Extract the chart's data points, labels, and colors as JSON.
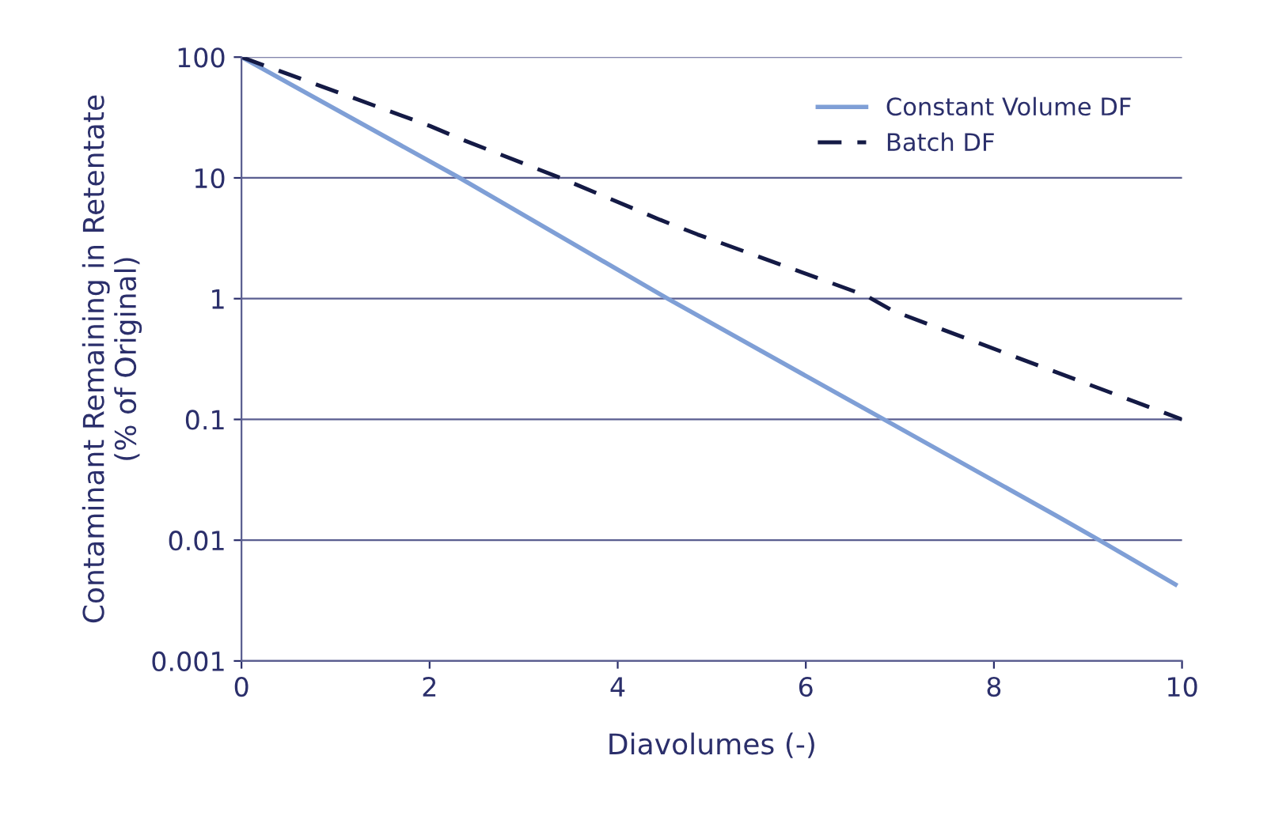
{
  "chart_data": {
    "type": "line",
    "xlabel": "Diavolumes (-)",
    "ylabel": "Contaminant Remaining in Retentate\n(% of Original)",
    "log": "y",
    "xlim": [
      0,
      10
    ],
    "xticks": [
      0,
      2,
      4,
      6,
      8,
      10
    ],
    "ylim": [
      0.001,
      100
    ],
    "yticks": [
      0.001,
      0.01,
      0.1,
      1,
      10,
      100
    ],
    "grid": "y",
    "legend": "top right",
    "series": [
      {
        "name": "Constant Volume DF",
        "color": "#7f9fd6",
        "line_style": "solid",
        "x": [
          0,
          2.32,
          4.53,
          6.83,
          8.66,
          9.12,
          9.93
        ],
        "values": [
          100,
          10,
          1,
          0.1,
          0.016,
          0.01,
          0.0043
        ]
      },
      {
        "name": "Batch DF",
        "color": "#141a45",
        "line_style": "dashed",
        "x": [
          0,
          2.0,
          2.33,
          3.39,
          4.45,
          4.85,
          6.64,
          6.93,
          10
        ],
        "values": [
          100,
          27,
          21,
          10,
          4.5,
          3.4,
          1.06,
          0.79,
          0.1
        ]
      }
    ]
  }
}
